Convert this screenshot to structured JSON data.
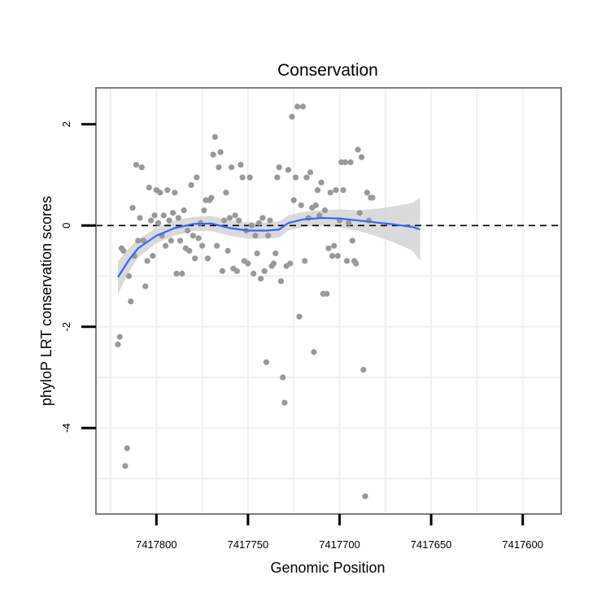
{
  "chart_data": {
    "type": "scatter",
    "title": "Conservation",
    "xlabel": "Genomic Position",
    "ylabel": "phyloP LRT conservation scores",
    "x_reversed": true,
    "xlim": [
      7417833,
      7417579
    ],
    "ylim": [
      -5.7,
      2.72
    ],
    "x_ticks": [
      7417800,
      7417750,
      7417700,
      7417650,
      7417600
    ],
    "x_tick_labels": [
      "7417800",
      "7417750",
      "7417700",
      "7417650",
      "7417600"
    ],
    "y_ticks": [
      2,
      0,
      -2,
      -4
    ],
    "y_tick_labels": [
      "2",
      "0",
      "-2",
      "-4"
    ],
    "reference_line": {
      "y": 0,
      "style": "dashed"
    },
    "colors": {
      "points": "#999999",
      "smooth": "#3366ff",
      "ribbon": "#d4d4d4",
      "panel_border": "#7f7f7f",
      "grid": "#f0f0f0"
    },
    "series": [
      {
        "name": "scores",
        "points": [
          [
            7417821,
            -2.35
          ],
          [
            7417820,
            -2.2
          ],
          [
            7417819,
            -0.45
          ],
          [
            7417818,
            -0.5
          ],
          [
            7417817,
            -4.75
          ],
          [
            7417816,
            -4.4
          ],
          [
            7417815,
            -1.0
          ],
          [
            7417814,
            -1.5
          ],
          [
            7417813,
            0.35
          ],
          [
            7417812,
            -0.6
          ],
          [
            7417811,
            1.2
          ],
          [
            7417810,
            -0.3
          ],
          [
            7417809,
            0.15
          ],
          [
            7417808,
            1.15
          ],
          [
            7417807,
            -0.3
          ],
          [
            7417806,
            -1.2
          ],
          [
            7417805,
            -0.7
          ],
          [
            7417804,
            0.75
          ],
          [
            7417803,
            0.1
          ],
          [
            7417802,
            -0.6
          ],
          [
            7417801,
            0.2
          ],
          [
            7417800,
            0.7
          ],
          [
            7417799,
            0.05
          ],
          [
            7417798,
            0.65
          ],
          [
            7417797,
            -0.2
          ],
          [
            7417796,
            0.2
          ],
          [
            7417795,
            -0.4
          ],
          [
            7417794,
            0.7
          ],
          [
            7417793,
            0.1
          ],
          [
            7417792,
            -0.3
          ],
          [
            7417791,
            0.25
          ],
          [
            7417790,
            0.65
          ],
          [
            7417789,
            -0.95
          ],
          [
            7417788,
            0.15
          ],
          [
            7417787,
            -0.3
          ],
          [
            7417786,
            -0.95
          ],
          [
            7417785,
            0.3
          ],
          [
            7417784,
            -0.45
          ],
          [
            7417783,
            -0.1
          ],
          [
            7417782,
            -0.5
          ],
          [
            7417781,
            0.8
          ],
          [
            7417780,
            -0.2
          ],
          [
            7417779,
            -0.65
          ],
          [
            7417778,
            0.95
          ],
          [
            7417777,
            -0.25
          ],
          [
            7417776,
            0.05
          ],
          [
            7417775,
            -0.4
          ],
          [
            7417774,
            0.3
          ],
          [
            7417773,
            0.5
          ],
          [
            7417772,
            -0.65
          ],
          [
            7417771,
            0.5
          ],
          [
            7417770,
            0.55
          ],
          [
            7417769,
            1.4
          ],
          [
            7417768,
            1.75
          ],
          [
            7417767,
            -0.4
          ],
          [
            7417766,
            1.15
          ],
          [
            7417765,
            1.45
          ],
          [
            7417764,
            -0.9
          ],
          [
            7417763,
            0.1
          ],
          [
            7417762,
            0.65
          ],
          [
            7417761,
            -0.5
          ],
          [
            7417760,
            0.15
          ],
          [
            7417759,
            1.15
          ],
          [
            7417758,
            -0.85
          ],
          [
            7417757,
            0.2
          ],
          [
            7417756,
            -0.9
          ],
          [
            7417755,
            0.1
          ],
          [
            7417754,
            1.2
          ],
          [
            7417753,
            0.95
          ],
          [
            7417752,
            -0.7
          ],
          [
            7417751,
            -0.1
          ],
          [
            7417750,
            -0.75
          ],
          [
            7417749,
            0.95
          ],
          [
            7417748,
            0.0
          ],
          [
            7417747,
            -0.95
          ],
          [
            7417746,
            -0.2
          ],
          [
            7417745,
            -0.55
          ],
          [
            7417744,
            0.05
          ],
          [
            7417743,
            -1.05
          ],
          [
            7417742,
            0.15
          ],
          [
            7417741,
            -0.9
          ],
          [
            7417740,
            -2.7
          ],
          [
            7417739,
            -0.2
          ],
          [
            7417738,
            0.1
          ],
          [
            7417737,
            -0.8
          ],
          [
            7417736,
            -0.75
          ],
          [
            7417735,
            -0.55
          ],
          [
            7417734,
            0.95
          ],
          [
            7417733,
            1.15
          ],
          [
            7417732,
            -1.1
          ],
          [
            7417731,
            -3.0
          ],
          [
            7417730,
            -3.5
          ],
          [
            7417729,
            -0.8
          ],
          [
            7417728,
            1.1
          ],
          [
            7417727,
            -0.75
          ],
          [
            7417726,
            2.15
          ],
          [
            7417725,
            0.5
          ],
          [
            7417724,
            0.95
          ],
          [
            7417723,
            2.35
          ],
          [
            7417722,
            -1.8
          ],
          [
            7417721,
            0.4
          ],
          [
            7417720,
            2.35
          ],
          [
            7417719,
            -0.7
          ],
          [
            7417718,
            0.95
          ],
          [
            7417717,
            0.15
          ],
          [
            7417716,
            1.05
          ],
          [
            7417715,
            0.35
          ],
          [
            7417714,
            -2.5
          ],
          [
            7417713,
            0.4
          ],
          [
            7417712,
            0.7
          ],
          [
            7417711,
            0.2
          ],
          [
            7417710,
            0.85
          ],
          [
            7417709,
            -1.35
          ],
          [
            7417708,
            0.3
          ],
          [
            7417707,
            -1.35
          ],
          [
            7417706,
            -0.45
          ],
          [
            7417705,
            0.65
          ],
          [
            7417704,
            -0.6
          ],
          [
            7417703,
            -0.4
          ],
          [
            7417702,
            0.7
          ],
          [
            7417701,
            -0.6
          ],
          [
            7417700,
            0.1
          ],
          [
            7417699,
            1.25
          ],
          [
            7417698,
            0.7
          ],
          [
            7417697,
            1.25
          ],
          [
            7417696,
            -0.7
          ],
          [
            7417695,
            0.05
          ],
          [
            7417694,
            1.25
          ],
          [
            7417693,
            -0.3
          ],
          [
            7417692,
            -0.7
          ],
          [
            7417691,
            -0.75
          ],
          [
            7417690,
            1.5
          ],
          [
            7417689,
            0.25
          ],
          [
            7417688,
            1.35
          ],
          [
            7417687,
            -2.85
          ],
          [
            7417686,
            -5.35
          ],
          [
            7417685,
            0.65
          ],
          [
            7417684,
            0.1
          ],
          [
            7417683,
            0.55
          ],
          [
            7417682,
            0.55
          ]
        ]
      }
    ],
    "smooth_fit": {
      "points": [
        [
          7417821,
          -1.02
        ],
        [
          7417815,
          -0.68
        ],
        [
          7417810,
          -0.45
        ],
        [
          7417800,
          -0.2
        ],
        [
          7417790,
          -0.05
        ],
        [
          7417780,
          0.03
        ],
        [
          7417770,
          0.04
        ],
        [
          7417760,
          -0.05
        ],
        [
          7417750,
          -0.1
        ],
        [
          7417740,
          -0.1
        ],
        [
          7417733,
          -0.08
        ],
        [
          7417728,
          0.05
        ],
        [
          7417720,
          0.12
        ],
        [
          7417710,
          0.15
        ],
        [
          7417700,
          0.14
        ],
        [
          7417690,
          0.1
        ],
        [
          7417680,
          0.06
        ],
        [
          7417670,
          0.02
        ],
        [
          7417660,
          -0.03
        ],
        [
          7417656,
          -0.08
        ]
      ],
      "ci_upper": [
        [
          7417821,
          -0.7
        ],
        [
          7417815,
          -0.45
        ],
        [
          7417810,
          -0.27
        ],
        [
          7417800,
          -0.05
        ],
        [
          7417790,
          0.1
        ],
        [
          7417780,
          0.17
        ],
        [
          7417770,
          0.19
        ],
        [
          7417760,
          0.1
        ],
        [
          7417750,
          0.06
        ],
        [
          7417740,
          0.06
        ],
        [
          7417733,
          0.08
        ],
        [
          7417728,
          0.2
        ],
        [
          7417720,
          0.27
        ],
        [
          7417710,
          0.3
        ],
        [
          7417700,
          0.32
        ],
        [
          7417690,
          0.3
        ],
        [
          7417680,
          0.33
        ],
        [
          7417670,
          0.38
        ],
        [
          7417660,
          0.45
        ],
        [
          7417656,
          0.55
        ]
      ],
      "ci_lower": [
        [
          7417821,
          -1.35
        ],
        [
          7417815,
          -0.92
        ],
        [
          7417810,
          -0.63
        ],
        [
          7417800,
          -0.35
        ],
        [
          7417790,
          -0.2
        ],
        [
          7417780,
          -0.11
        ],
        [
          7417770,
          -0.11
        ],
        [
          7417760,
          -0.2
        ],
        [
          7417750,
          -0.26
        ],
        [
          7417740,
          -0.26
        ],
        [
          7417733,
          -0.24
        ],
        [
          7417728,
          -0.1
        ],
        [
          7417720,
          -0.03
        ],
        [
          7417710,
          0.0
        ],
        [
          7417700,
          -0.04
        ],
        [
          7417690,
          -0.1
        ],
        [
          7417680,
          -0.21
        ],
        [
          7417670,
          -0.34
        ],
        [
          7417660,
          -0.5
        ],
        [
          7417656,
          -0.7
        ]
      ]
    }
  }
}
